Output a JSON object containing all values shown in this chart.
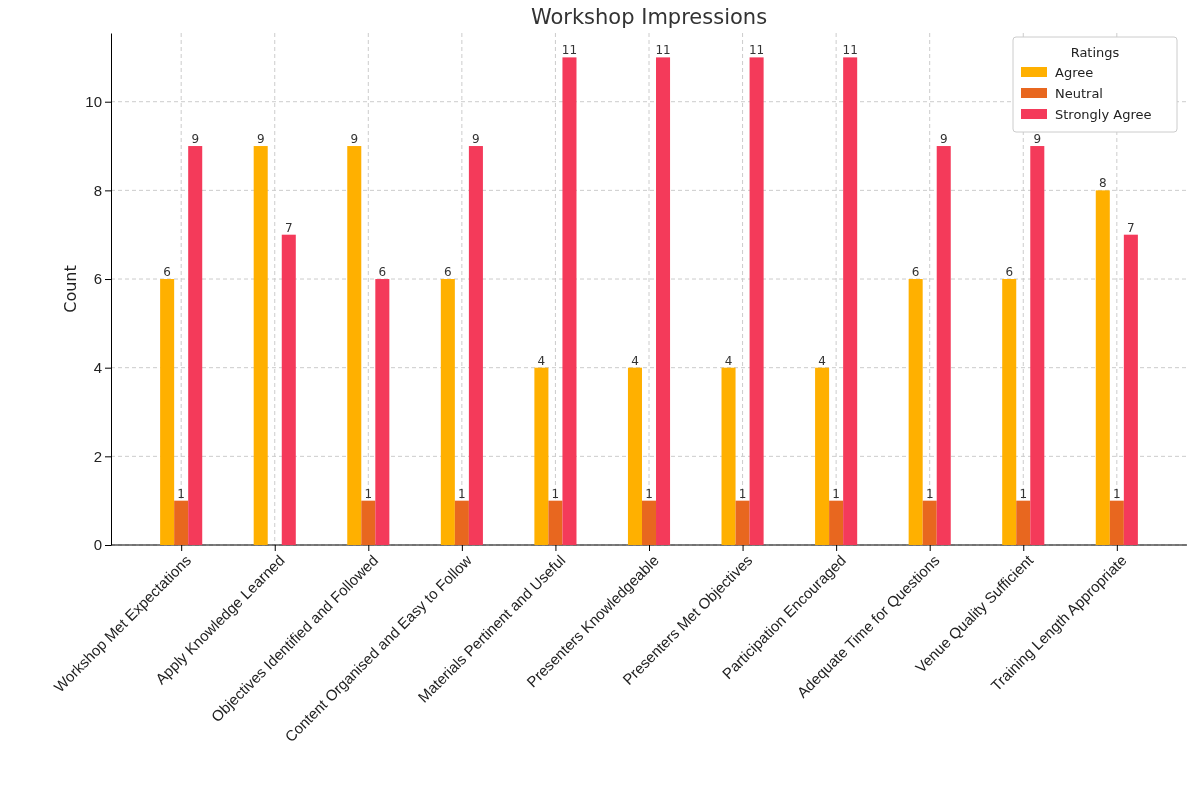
{
  "chart_data": {
    "type": "bar",
    "title": "Workshop Impressions",
    "ylabel": "Count",
    "categories": [
      "Workshop Met Expectations",
      "Apply Knowledge Learned",
      "Objectives Identified and Followed",
      "Content Organised and Easy to Follow",
      "Materials Pertinent and Useful",
      "Presenters Knowledgeable",
      "Presenters Met Objectives",
      "Participation Encouraged",
      "Adequate Time for Questions",
      "Venue Quality Sufficient",
      "Training Length Appropriate"
    ],
    "series": [
      {
        "name": "Agree",
        "color": "#ffb000",
        "values": [
          6,
          9,
          9,
          6,
          4,
          4,
          4,
          4,
          6,
          6,
          8
        ]
      },
      {
        "name": "Neutral",
        "color": "#e8671f",
        "values": [
          1,
          null,
          1,
          1,
          1,
          1,
          1,
          1,
          1,
          1,
          1
        ]
      },
      {
        "name": "Strongly Agree",
        "color": "#f43a5a",
        "values": [
          9,
          7,
          6,
          9,
          11,
          11,
          11,
          11,
          9,
          9,
          7
        ]
      }
    ],
    "ylim": [
      0,
      11.55
    ],
    "yticks": [
      0,
      2,
      4,
      6,
      8,
      10
    ],
    "grid": true,
    "legend": "top right",
    "legend_title": "Ratings",
    "data_labels": true
  }
}
